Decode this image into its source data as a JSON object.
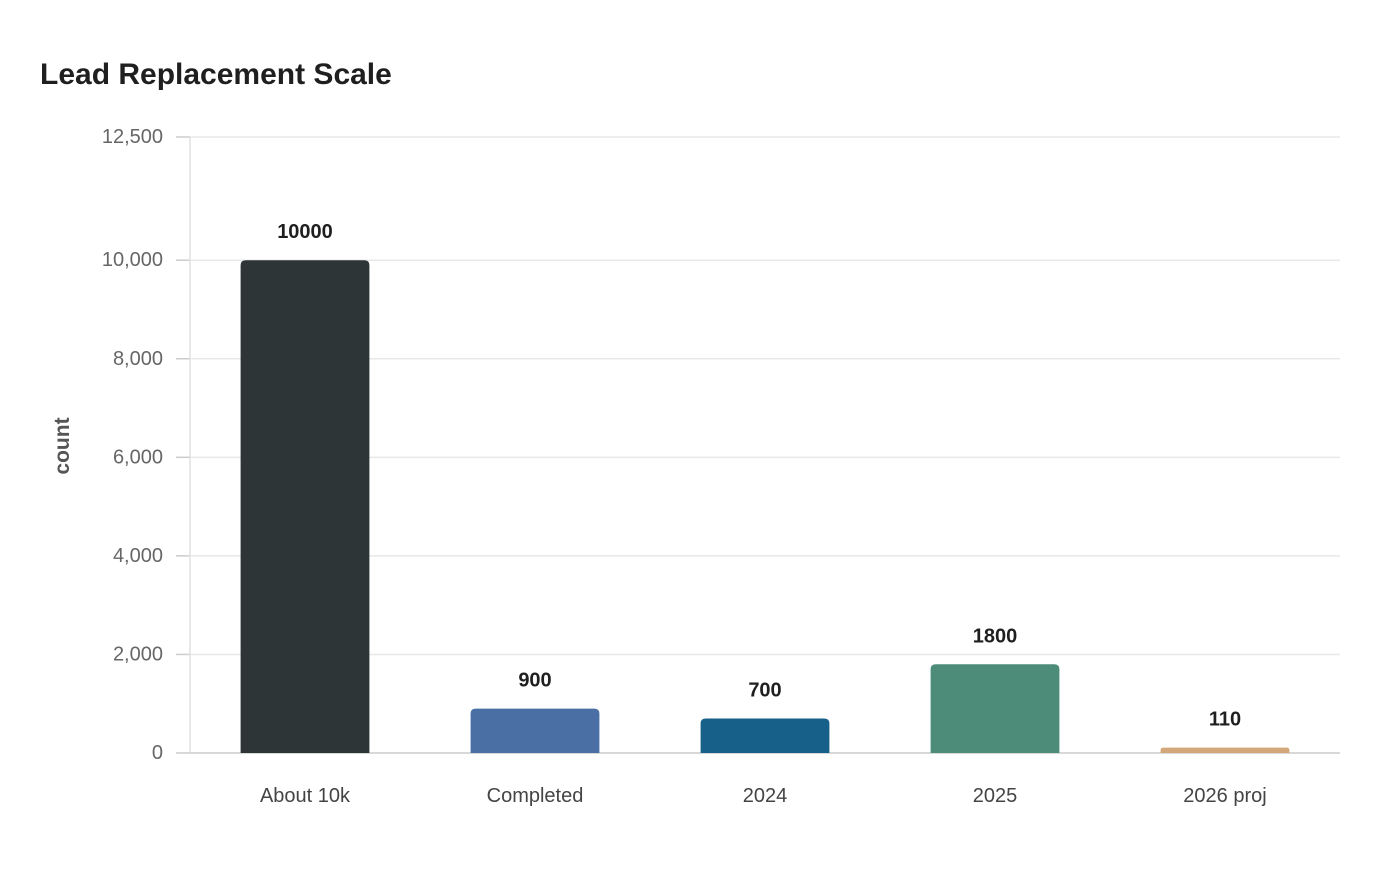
{
  "chart_data": {
    "type": "bar",
    "title": "Lead Replacement Scale",
    "xlabel": "",
    "ylabel": "count",
    "ylim": [
      0,
      12500
    ],
    "yticks": [
      0,
      2000,
      4000,
      6000,
      8000,
      10000,
      12500
    ],
    "ytick_labels": [
      "0",
      "2,000",
      "4,000",
      "6,000",
      "8,000",
      "10,000",
      "12,500"
    ],
    "categories": [
      "About 10k",
      "Completed",
      "2024",
      "2025",
      "2026 proj"
    ],
    "values": [
      10000,
      900,
      700,
      1800,
      110
    ],
    "data_labels": [
      "10000",
      "900",
      "700",
      "1800",
      "110"
    ],
    "colors": [
      "#2e3537",
      "#4a6fa5",
      "#17608a",
      "#4e8c7a",
      "#d4a77a"
    ],
    "grid": true,
    "legend": "none"
  }
}
